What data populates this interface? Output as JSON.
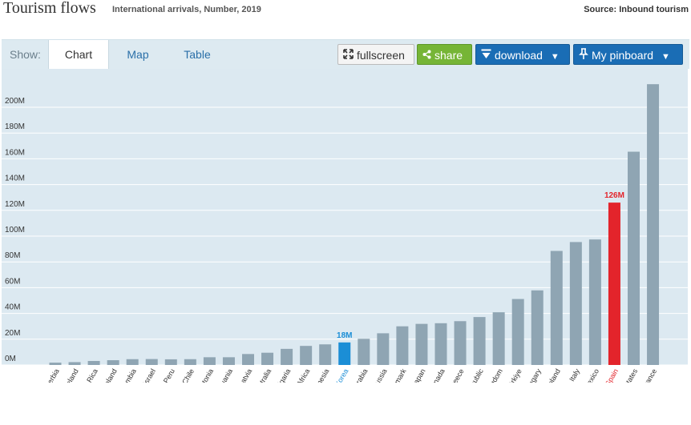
{
  "header": {
    "title": "Tourism flows",
    "subtitle": "International arrivals, Number, 2019",
    "source": "Source: Inbound tourism"
  },
  "toolbar": {
    "show_label": "Show:",
    "tabs": [
      "Chart",
      "Map",
      "Table"
    ],
    "fullscreen_label": "fullscreen",
    "share_label": "share",
    "download_label": "download",
    "pinboard_label": "My pinboard",
    "fullscreen_icon": "expand-icon",
    "share_icon": "share-icon",
    "download_icon": "download-icon",
    "pinboard_icon": "pin-icon",
    "colors": {
      "share": "#76b536",
      "primary": "#1a6db5",
      "tab_link": "#2a6fa8"
    }
  },
  "chart_data": {
    "type": "bar",
    "title": "Tourism flows",
    "ylim": [
      0,
      220
    ],
    "yticks": [
      0,
      20,
      40,
      60,
      80,
      100,
      120,
      140,
      160,
      180,
      200
    ],
    "ytick_labels": [
      "0M",
      "20M",
      "40M",
      "60M",
      "80M",
      "100M",
      "120M",
      "140M",
      "160M",
      "180M",
      "200M"
    ],
    "grid": true,
    "categories": [
      "Serbia",
      "Iceland",
      "Costa Rica",
      "New Zealand",
      "Colombia",
      "Israel",
      "Peru",
      "Chile",
      "Estonia",
      "Lithuania",
      "Latvia",
      "Australia",
      "Bulgaria",
      "South Africa",
      "Indonesia",
      "Korea",
      "Saudi Arabia",
      "Russia",
      "Denmark",
      "Japan",
      "Canada",
      "Greece",
      "Czech Republic",
      "United Kingdom",
      "Türkiye",
      "Hungary",
      "Poland",
      "Italy",
      "Mexico",
      "Spain",
      "United States",
      "France"
    ],
    "values": [
      1.8,
      2.2,
      3.1,
      3.7,
      4.5,
      4.6,
      4.4,
      4.5,
      6,
      6,
      8.5,
      9.5,
      12.5,
      14.8,
      16,
      17.5,
      20.3,
      24.6,
      30,
      31.9,
      32.4,
      34,
      37.2,
      40.9,
      51.2,
      57.9,
      88.5,
      95.4,
      97.4,
      126,
      165.5,
      217.9
    ],
    "highlights": [
      {
        "category": "Korea",
        "label": "18M",
        "color": "#1b8ed6"
      },
      {
        "category": "Spain",
        "label": "126M",
        "color": "#e3242b"
      }
    ],
    "colors": {
      "bar": "#8fa5b3",
      "plot_bg": "#dce9f1",
      "grid": "#ffffff"
    }
  }
}
